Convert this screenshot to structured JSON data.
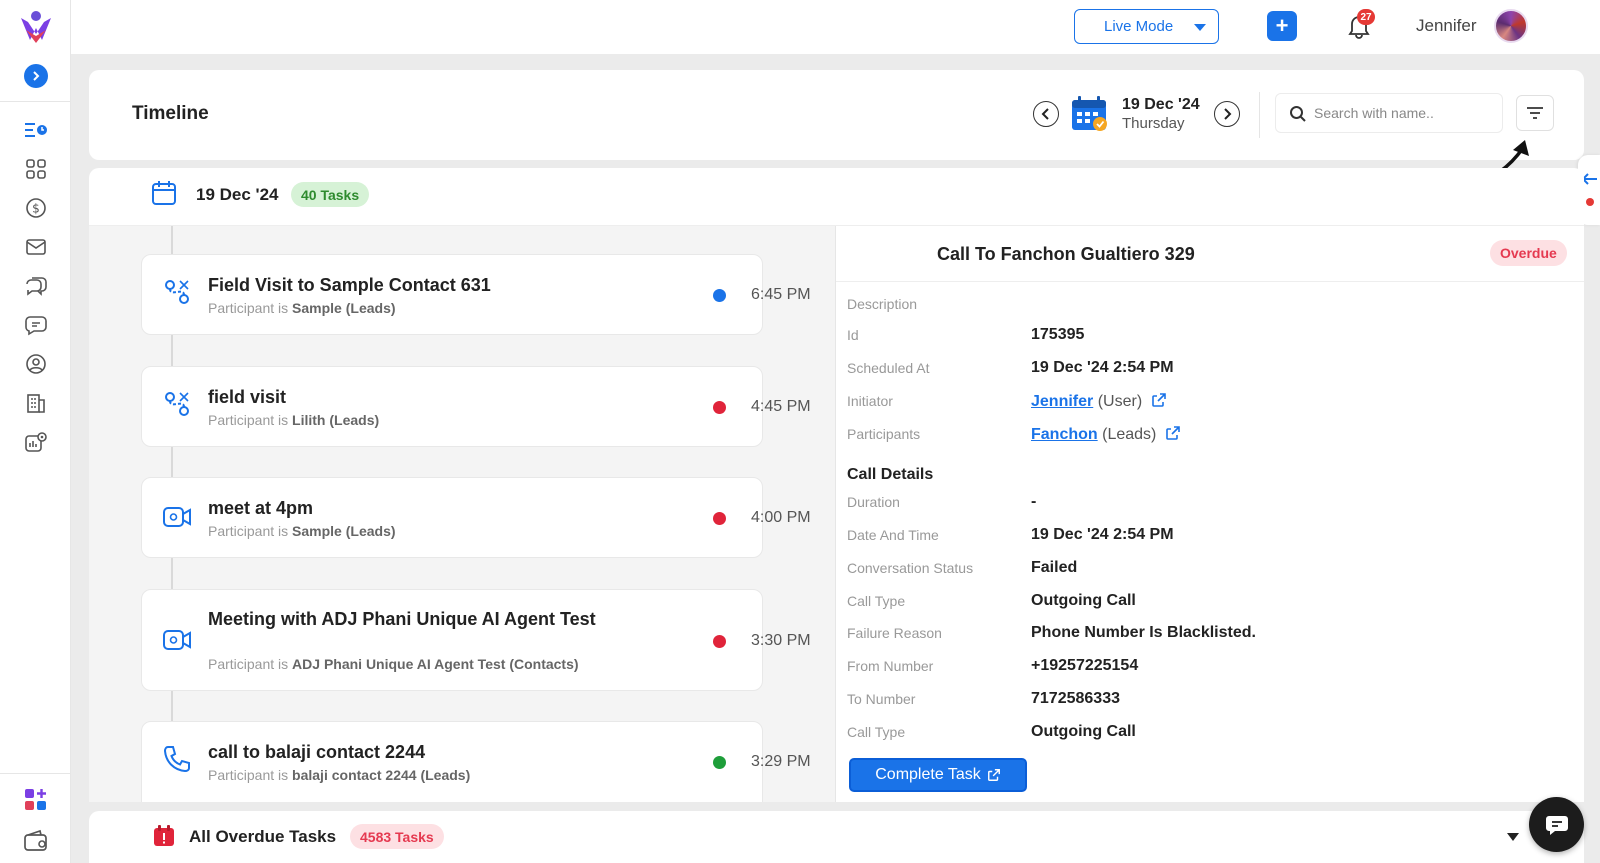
{
  "topbar": {
    "live_mode_label": "Live Mode",
    "add_label": "+",
    "notification_count": "27",
    "user_name": "Jennifer"
  },
  "header": {
    "title": "Timeline",
    "date_main": "19 Dec '24",
    "date_sub": "Thursday",
    "search_placeholder": "Search with name.."
  },
  "day": {
    "label": "19 Dec '24",
    "task_count": "40 Tasks"
  },
  "tasks": [
    {
      "title": "Field Visit to Sample Contact 631",
      "prefix": "Participant is",
      "participant": "Sample (Leads)",
      "time": "6:45 PM",
      "dot_color": "#1a73e8",
      "icon": "field-visit-icon"
    },
    {
      "title": "field visit",
      "prefix": "Participant is",
      "participant": "Lilith (Leads)",
      "time": "4:45 PM",
      "dot_color": "#e0243a",
      "icon": "field-visit-icon"
    },
    {
      "title": "meet at 4pm",
      "prefix": "Participant is",
      "participant": "Sample (Leads)",
      "time": "4:00 PM",
      "dot_color": "#e0243a",
      "icon": "video-icon"
    },
    {
      "title": "Meeting with ADJ Phani Unique AI Agent Test",
      "prefix": "Participant is",
      "participant": "ADJ Phani Unique AI Agent Test (Contacts)",
      "time": "3:30 PM",
      "dot_color": "#e0243a",
      "icon": "video-icon"
    },
    {
      "title": "call to balaji contact 2244",
      "prefix": "Participant is",
      "participant": "balaji contact 2244 (Leads)",
      "time": "3:29 PM",
      "dot_color": "#1e9e3a",
      "icon": "phone-icon"
    }
  ],
  "detail": {
    "title": "Call To Fanchon Gualtiero 329",
    "status": "Overdue",
    "description_label": "Description",
    "id_label": "Id",
    "id_value": "175395",
    "scheduled_label": "Scheduled At",
    "scheduled_value": "19 Dec '24 2:54 PM",
    "initiator_label": "Initiator",
    "initiator_name": "Jennifer",
    "initiator_type": "(User)",
    "participants_label": "Participants",
    "participant_name": "Fanchon",
    "participant_type": "(Leads)",
    "call_details_heading": "Call Details",
    "duration_label": "Duration",
    "duration_value": "-",
    "datetime_label": "Date And Time",
    "datetime_value": "19 Dec '24 2:54 PM",
    "conv_status_label": "Conversation Status",
    "conv_status_value": "Failed",
    "call_type_label": "Call Type",
    "call_type_value": "Outgoing Call",
    "failure_label": "Failure Reason",
    "failure_value": "Phone Number Is Blacklisted.",
    "from_label": "From Number",
    "from_value": "+19257225154",
    "to_label": "To Number",
    "to_value": "7172586333",
    "call_type2_label": "Call Type",
    "call_type2_value": "Outgoing Call",
    "complete_button": "Complete Task"
  },
  "overdue": {
    "label": "All Overdue Tasks",
    "count": "4583 Tasks"
  }
}
